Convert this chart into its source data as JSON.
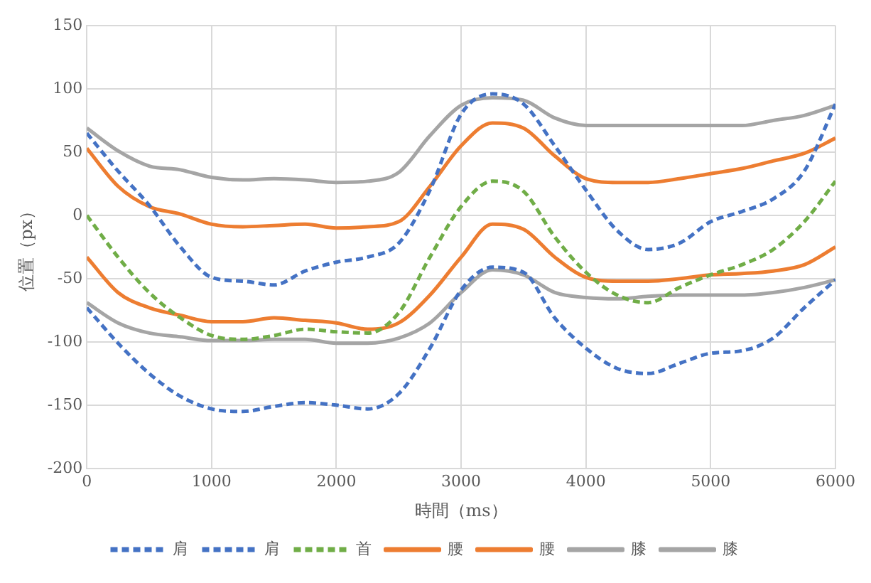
{
  "chart_data": {
    "type": "line",
    "xlabel": "時間（ms）",
    "ylabel": "位置（px）",
    "x": [
      0,
      250,
      500,
      750,
      1000,
      1250,
      1500,
      1750,
      2000,
      2250,
      2500,
      2750,
      3000,
      3250,
      3500,
      3750,
      4000,
      4250,
      4500,
      4750,
      5000,
      5250,
      5500,
      5750,
      6000
    ],
    "xlim": [
      0,
      6000
    ],
    "xticks": [
      0,
      1000,
      2000,
      3000,
      4000,
      5000,
      6000
    ],
    "ylim": [
      -200,
      150
    ],
    "yticks": [
      -200,
      -150,
      -100,
      -50,
      0,
      50,
      100,
      150
    ],
    "grid": true,
    "legend": "bottom",
    "marker": "none",
    "series": [
      {
        "name": "肩",
        "color": "#4472c4",
        "line_style": "dashed",
        "values": [
          65,
          35,
          8,
          -25,
          -49,
          -52,
          -55,
          -44,
          -37,
          -33,
          -22,
          20,
          80,
          96,
          88,
          55,
          20,
          -12,
          -27,
          -22,
          -5,
          3,
          13,
          35,
          88
        ]
      },
      {
        "name": "肩",
        "color": "#4472c4",
        "line_style": "dashed",
        "values": [
          -73,
          -101,
          -125,
          -143,
          -153,
          -155,
          -151,
          -148,
          -150,
          -153,
          -141,
          -105,
          -59,
          -41,
          -45,
          -81,
          -105,
          -121,
          -125,
          -117,
          -109,
          -107,
          -97,
          -73,
          -51
        ]
      },
      {
        "name": "首",
        "color": "#70ad47",
        "line_style": "dashed",
        "values": [
          0,
          -33,
          -61,
          -81,
          -95,
          -98,
          -95,
          -90,
          -92,
          -93,
          -77,
          -33,
          7,
          27,
          19,
          -17,
          -45,
          -63,
          -69,
          -57,
          -47,
          -39,
          -27,
          -5,
          27
        ]
      },
      {
        "name": "腰",
        "color": "#ed7d31",
        "line_style": "solid",
        "values": [
          53,
          23,
          7,
          1,
          -7,
          -9,
          -8,
          -7,
          -10,
          -9,
          -5,
          23,
          55,
          73,
          69,
          47,
          29,
          26,
          26,
          29,
          33,
          37,
          43,
          49,
          61
        ]
      },
      {
        "name": "腰",
        "color": "#ed7d31",
        "line_style": "solid",
        "values": [
          -33,
          -61,
          -73,
          -79,
          -84,
          -84,
          -81,
          -83,
          -85,
          -90,
          -85,
          -63,
          -33,
          -7,
          -11,
          -33,
          -49,
          -52,
          -52,
          -50,
          -47,
          -46,
          -44,
          -39,
          -25
        ]
      },
      {
        "name": "膝",
        "color": "#a5a5a5",
        "line_style": "solid",
        "values": [
          69,
          51,
          39,
          36,
          30,
          28,
          29,
          28,
          26,
          27,
          34,
          63,
          87,
          93,
          91,
          77,
          71,
          71,
          71,
          71,
          71,
          71,
          75,
          79,
          87
        ]
      },
      {
        "name": "膝",
        "color": "#a5a5a5",
        "line_style": "solid",
        "values": [
          -69,
          -85,
          -93,
          -96,
          -99,
          -99,
          -98,
          -98,
          -101,
          -101,
          -97,
          -85,
          -61,
          -43,
          -47,
          -61,
          -65,
          -66,
          -64,
          -63,
          -63,
          -63,
          -61,
          -57,
          -51
        ]
      }
    ]
  }
}
